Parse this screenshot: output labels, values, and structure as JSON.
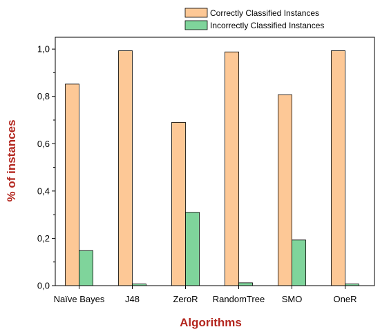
{
  "chart_data": {
    "type": "bar",
    "title": "",
    "xlabel": "Algorithms",
    "ylabel": "% of instances",
    "categories": [
      "Naïve Bayes",
      "J48",
      "ZeroR",
      "RandomTree",
      "SMO",
      "OneR"
    ],
    "series": [
      {
        "name": "Correctly Classified Instances",
        "values": [
          0.852,
          0.993,
          0.69,
          0.988,
          0.807,
          0.993
        ],
        "color": "#fdc896"
      },
      {
        "name": "Incorrectly Classified Instances",
        "values": [
          0.148,
          0.007,
          0.31,
          0.012,
          0.193,
          0.007
        ],
        "color": "#7fd49b"
      }
    ],
    "ylim": [
      0,
      1.05
    ],
    "yticks": [
      "0,0",
      "0,2",
      "0,4",
      "0,6",
      "0,8",
      "1,0"
    ],
    "ytick_values": [
      0,
      0.2,
      0.4,
      0.6,
      0.8,
      1.0
    ],
    "grid": false,
    "legend_position": "top-right",
    "axis_title_color": "#b3261e"
  }
}
